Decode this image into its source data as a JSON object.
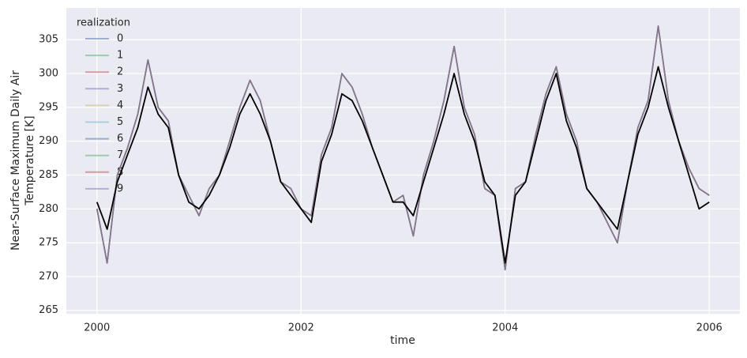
{
  "chart_data": {
    "type": "line",
    "xlabel": "time",
    "ylabel": [
      "Near-Surface Maximum Daily Air",
      "Temperature [K]"
    ],
    "legend_title": "realization",
    "legend_position": "upper left",
    "grid": true,
    "xlim": [
      1999.7,
      2006.3
    ],
    "ylim": [
      264.5,
      309.7
    ],
    "xticks": [
      2000,
      2002,
      2004,
      2006
    ],
    "yticks": [
      265,
      270,
      275,
      280,
      285,
      290,
      295,
      300,
      305
    ],
    "x": [
      2000.0,
      2000.1,
      2000.2,
      2000.3,
      2000.4,
      2000.5,
      2000.6,
      2000.7,
      2000.8,
      2000.9,
      2001.0,
      2001.1,
      2001.2,
      2001.3,
      2001.4,
      2001.5,
      2001.6,
      2001.7,
      2001.8,
      2001.9,
      2002.0,
      2002.1,
      2002.2,
      2002.3,
      2002.4,
      2002.5,
      2002.6,
      2002.7,
      2002.8,
      2002.9,
      2003.0,
      2003.1,
      2003.2,
      2003.3,
      2003.4,
      2003.5,
      2003.6,
      2003.7,
      2003.8,
      2003.9,
      2004.0,
      2004.1,
      2004.2,
      2004.3,
      2004.4,
      2004.5,
      2004.6,
      2004.7,
      2004.8,
      2004.9,
      2005.0,
      2005.1,
      2005.2,
      2005.3,
      2005.4,
      2005.5,
      2005.6,
      2005.7,
      2005.8,
      2005.9,
      2006.0
    ],
    "series": [
      {
        "name": "0",
        "color": "#4c72b0",
        "values": [
          280,
          272,
          285,
          289,
          294,
          302,
          295,
          293,
          285,
          282,
          279,
          283,
          285,
          290,
          295,
          299,
          296,
          290,
          284,
          283,
          280,
          279,
          288,
          292,
          300,
          298,
          294,
          289,
          285,
          281,
          282,
          276,
          285,
          290,
          296,
          304,
          295,
          291,
          283,
          282,
          271,
          283,
          284,
          291,
          297,
          301,
          294,
          290,
          283,
          281,
          278,
          275,
          284,
          292,
          296,
          307,
          296,
          290,
          286,
          283,
          282
        ]
      },
      {
        "name": "1",
        "color": "#55a868",
        "values": [
          280,
          272,
          285,
          289,
          294,
          302,
          295,
          293,
          285,
          282,
          279,
          283,
          285,
          290,
          295,
          299,
          296,
          290,
          284,
          283,
          280,
          279,
          288,
          292,
          300,
          298,
          294,
          289,
          285,
          281,
          282,
          276,
          285,
          290,
          296,
          304,
          295,
          291,
          283,
          282,
          271,
          283,
          284,
          291,
          297,
          301,
          294,
          290,
          283,
          281,
          278,
          275,
          284,
          292,
          296,
          307,
          296,
          290,
          286,
          283,
          282
        ]
      },
      {
        "name": "2",
        "color": "#c44e52",
        "values": [
          280,
          272,
          285,
          289,
          294,
          302,
          295,
          293,
          285,
          282,
          279,
          283,
          285,
          290,
          295,
          299,
          296,
          290,
          284,
          283,
          280,
          279,
          288,
          292,
          300,
          298,
          294,
          289,
          285,
          281,
          282,
          276,
          285,
          290,
          296,
          304,
          295,
          291,
          283,
          282,
          271,
          283,
          284,
          291,
          297,
          301,
          294,
          290,
          283,
          281,
          278,
          275,
          284,
          292,
          296,
          307,
          296,
          290,
          286,
          283,
          282
        ]
      },
      {
        "name": "3",
        "color": "#8172b2",
        "values": [
          280,
          272,
          285,
          289,
          294,
          302,
          295,
          293,
          285,
          282,
          279,
          283,
          285,
          290,
          295,
          299,
          296,
          290,
          284,
          283,
          280,
          279,
          288,
          292,
          300,
          298,
          294,
          289,
          285,
          281,
          282,
          276,
          285,
          290,
          296,
          304,
          295,
          291,
          283,
          282,
          271,
          283,
          284,
          291,
          297,
          301,
          294,
          290,
          283,
          281,
          278,
          275,
          284,
          292,
          296,
          307,
          296,
          290,
          286,
          283,
          282
        ]
      },
      {
        "name": "4",
        "color": "#ccb974",
        "values": [
          280,
          272,
          285,
          289,
          294,
          302,
          295,
          293,
          285,
          282,
          279,
          283,
          285,
          290,
          295,
          299,
          296,
          290,
          284,
          283,
          280,
          279,
          288,
          292,
          300,
          298,
          294,
          289,
          285,
          281,
          282,
          276,
          285,
          290,
          296,
          304,
          295,
          291,
          283,
          282,
          271,
          283,
          284,
          291,
          297,
          301,
          294,
          290,
          283,
          281,
          278,
          275,
          284,
          292,
          296,
          307,
          296,
          290,
          286,
          283,
          282
        ]
      },
      {
        "name": "5",
        "color": "#64b5cd",
        "values": [
          280,
          272,
          285,
          289,
          294,
          302,
          295,
          293,
          285,
          282,
          279,
          283,
          285,
          290,
          295,
          299,
          296,
          290,
          284,
          283,
          280,
          279,
          288,
          292,
          300,
          298,
          294,
          289,
          285,
          281,
          282,
          276,
          285,
          290,
          296,
          304,
          295,
          291,
          283,
          282,
          271,
          283,
          284,
          291,
          297,
          301,
          294,
          290,
          283,
          281,
          278,
          275,
          284,
          292,
          296,
          307,
          296,
          290,
          286,
          283,
          282
        ]
      },
      {
        "name": "6",
        "color": "#4c72b0",
        "values": [
          280,
          272,
          285,
          289,
          294,
          302,
          295,
          293,
          285,
          282,
          279,
          283,
          285,
          290,
          295,
          299,
          296,
          290,
          284,
          283,
          280,
          279,
          288,
          292,
          300,
          298,
          294,
          289,
          285,
          281,
          282,
          276,
          285,
          290,
          296,
          304,
          295,
          291,
          283,
          282,
          271,
          283,
          284,
          291,
          297,
          301,
          294,
          290,
          283,
          281,
          278,
          275,
          284,
          292,
          296,
          307,
          296,
          290,
          286,
          283,
          282
        ]
      },
      {
        "name": "7",
        "color": "#55a868",
        "values": [
          280,
          272,
          285,
          289,
          294,
          302,
          295,
          293,
          285,
          282,
          279,
          283,
          285,
          290,
          295,
          299,
          296,
          290,
          284,
          283,
          280,
          279,
          288,
          292,
          300,
          298,
          294,
          289,
          285,
          281,
          282,
          276,
          285,
          290,
          296,
          304,
          295,
          291,
          283,
          282,
          271,
          283,
          284,
          291,
          297,
          301,
          294,
          290,
          283,
          281,
          278,
          275,
          284,
          292,
          296,
          307,
          296,
          290,
          286,
          283,
          282
        ]
      },
      {
        "name": "8",
        "color": "#c44e52",
        "values": [
          280,
          272,
          285,
          289,
          294,
          302,
          295,
          293,
          285,
          282,
          279,
          283,
          285,
          290,
          295,
          299,
          296,
          290,
          284,
          283,
          280,
          279,
          288,
          292,
          300,
          298,
          294,
          289,
          285,
          281,
          282,
          276,
          285,
          290,
          296,
          304,
          295,
          291,
          283,
          282,
          271,
          283,
          284,
          291,
          297,
          301,
          294,
          290,
          283,
          281,
          278,
          275,
          284,
          292,
          296,
          307,
          296,
          290,
          286,
          283,
          282
        ]
      },
      {
        "name": "9",
        "color": "#8172b2",
        "values": [
          280,
          272,
          285,
          289,
          294,
          302,
          295,
          293,
          285,
          282,
          279,
          283,
          285,
          290,
          295,
          299,
          296,
          290,
          284,
          283,
          280,
          279,
          288,
          292,
          300,
          298,
          294,
          289,
          285,
          281,
          282,
          276,
          285,
          290,
          296,
          304,
          295,
          291,
          283,
          282,
          271,
          283,
          284,
          291,
          297,
          301,
          294,
          290,
          283,
          281,
          278,
          275,
          284,
          292,
          296,
          307,
          296,
          290,
          286,
          283,
          282
        ]
      },
      {
        "color": "#000000",
        "values": [
          281,
          277,
          284,
          288,
          292,
          298,
          294,
          292,
          285,
          281,
          280,
          282,
          285,
          289,
          294,
          297,
          294,
          290,
          284,
          282,
          280,
          278,
          287,
          291,
          297,
          296,
          293,
          289,
          285,
          281,
          281,
          279,
          284,
          289,
          294,
          300,
          294,
          290,
          284,
          282,
          272,
          282,
          284,
          290,
          296,
          300,
          293,
          289,
          283,
          281,
          279,
          277,
          284,
          291,
          295,
          301,
          295,
          290,
          285,
          280,
          281
        ]
      }
    ]
  }
}
